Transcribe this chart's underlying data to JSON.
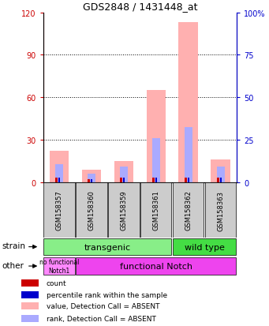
{
  "title": "GDS2848 / 1431448_at",
  "samples": [
    "GSM158357",
    "GSM158360",
    "GSM158359",
    "GSM158361",
    "GSM158362",
    "GSM158363"
  ],
  "pink_bars": [
    22,
    9,
    15,
    65,
    113,
    16
  ],
  "blue_bars": [
    13,
    6,
    11,
    31,
    39,
    11
  ],
  "red_bars": [
    3,
    2,
    3,
    3,
    3,
    3
  ],
  "blue_small_bars": [
    3,
    2,
    3,
    3,
    3,
    3
  ],
  "ylim_left": [
    0,
    120
  ],
  "ylim_right": [
    0,
    100
  ],
  "yticks_left": [
    0,
    30,
    60,
    90,
    120
  ],
  "yticks_right": [
    0,
    25,
    50,
    75,
    100
  ],
  "yticklabels_right": [
    "0",
    "25",
    "50",
    "75",
    "100%"
  ],
  "transgenic_label": "transgenic",
  "wildtype_label": "wild type",
  "nofunc_label": "no functional\nNotch1",
  "func_label": "functional Notch",
  "strain_label": "strain",
  "other_label": "other",
  "legend_labels": [
    "count",
    "percentile rank within the sample",
    "value, Detection Call = ABSENT",
    "rank, Detection Call = ABSENT"
  ],
  "transgenic_color": "#88ee88",
  "wildtype_color": "#44dd44",
  "nofunc_color": "#ff88ff",
  "func_color": "#ee44ee",
  "sample_bg_color": "#cccccc",
  "pink_color": "#ffb0b0",
  "blue_bar_color": "#aaaaff",
  "red_color": "#cc0000",
  "blue_color": "#0000cc",
  "grid_color": "#333333"
}
